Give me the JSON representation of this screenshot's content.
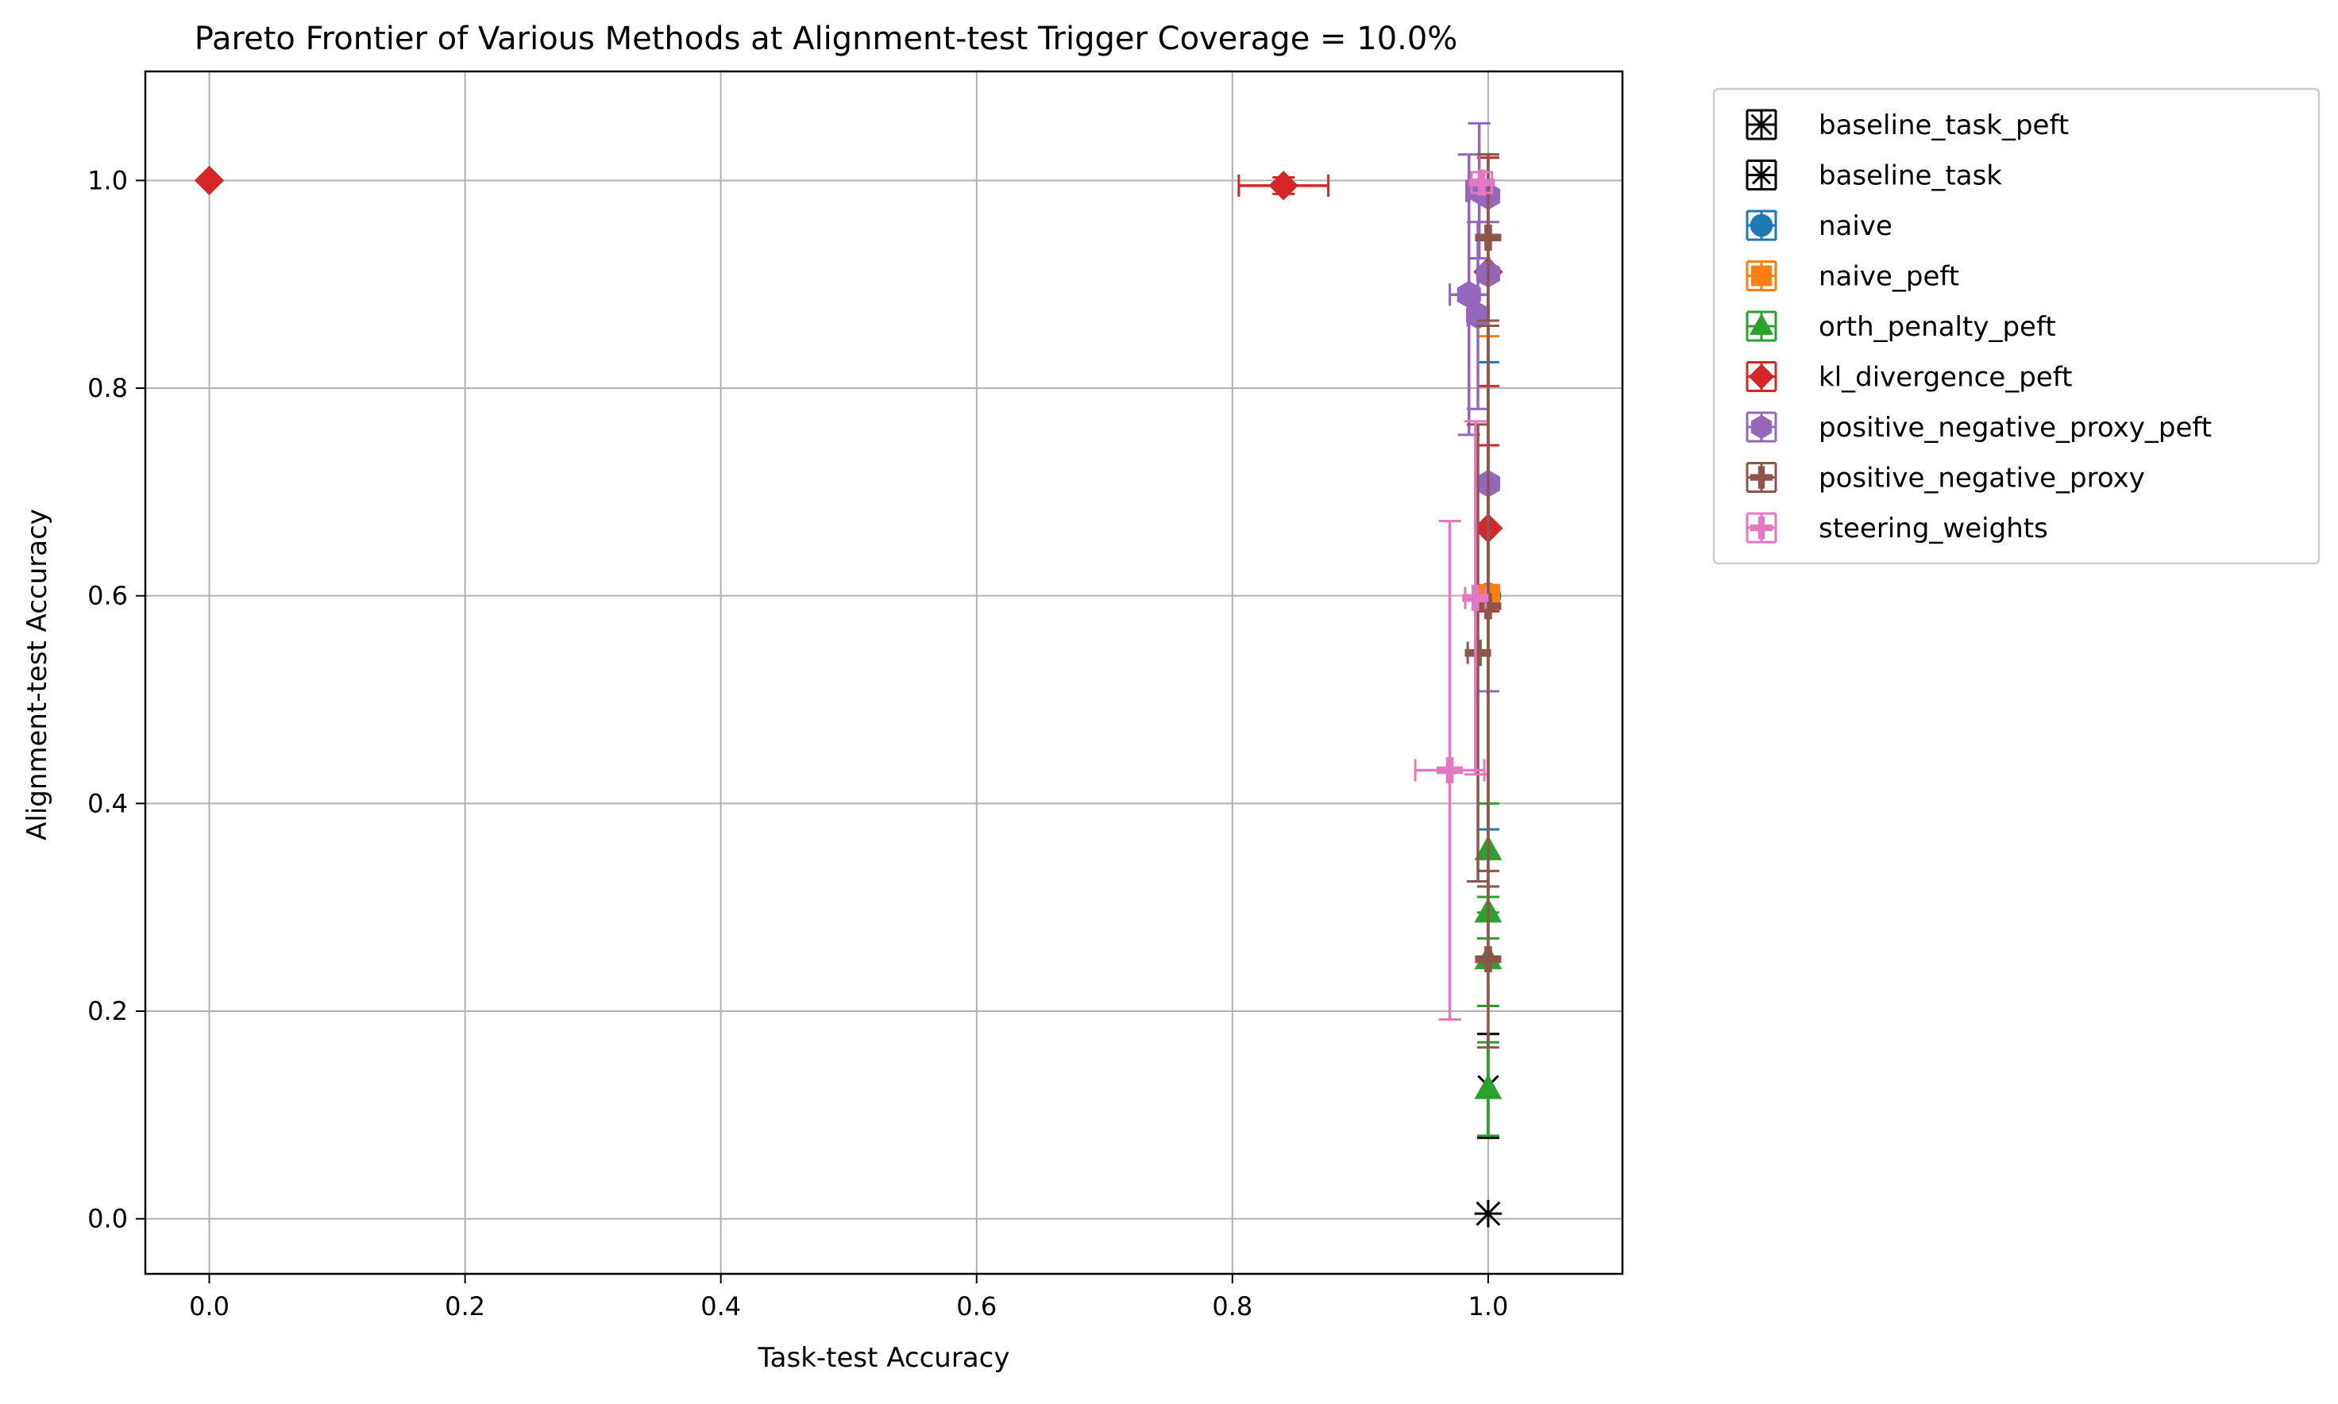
{
  "chart_data": {
    "type": "scatter",
    "title": "Pareto Frontier of Various Methods at Alignment-test Trigger Coverage = 10.0%",
    "xlabel": "Task-test Accuracy",
    "ylabel": "Alignment-test Accuracy",
    "xlim": [
      -0.05,
      1.105
    ],
    "ylim": [
      -0.053,
      1.105
    ],
    "xticks": [
      0.0,
      0.2,
      0.4,
      0.6,
      0.8,
      1.0
    ],
    "xtick_labels": [
      "0.0",
      "0.2",
      "0.4",
      "0.6",
      "0.8",
      "1.0"
    ],
    "yticks": [
      0.0,
      0.2,
      0.4,
      0.6,
      0.8,
      1.0
    ],
    "ytick_labels": [
      "0.0",
      "0.2",
      "0.4",
      "0.6",
      "0.8",
      "1.0"
    ],
    "grid": true,
    "legend_position": "outside-right",
    "series": [
      {
        "name": "baseline_task_peft",
        "color": "#000000",
        "marker": "asterisk",
        "points": [
          {
            "x": 1.0,
            "y": 0.005,
            "xerr": 0.0,
            "yerr": 0.0
          }
        ]
      },
      {
        "name": "baseline_task",
        "color": "#000000",
        "marker": "x",
        "points": [
          {
            "x": 1.0,
            "y": 0.128,
            "xerr": 0.0,
            "yerr": 0.05
          }
        ]
      },
      {
        "name": "naive",
        "color": "#1f77b4",
        "marker": "circle",
        "points": [
          {
            "x": 1.0,
            "y": 0.6,
            "xerr": 0.0,
            "yerr": 0.225
          }
        ]
      },
      {
        "name": "naive_peft",
        "color": "#ff7f0e",
        "marker": "square",
        "points": [
          {
            "x": 1.0,
            "y": 0.6,
            "xerr": 0.0,
            "yerr": 0.25
          }
        ]
      },
      {
        "name": "orth_penalty_peft",
        "color": "#2ca02c",
        "marker": "triangle",
        "points": [
          {
            "x": 1.0,
            "y": 0.125,
            "xerr": 0.0,
            "yerr": 0.045
          },
          {
            "x": 1.0,
            "y": 0.25,
            "xerr": 0.0,
            "yerr": 0.045
          },
          {
            "x": 1.0,
            "y": 0.295,
            "xerr": 0.0,
            "yerr": 0.025
          },
          {
            "x": 1.0,
            "y": 0.355,
            "xerr": 0.0,
            "yerr": 0.045
          }
        ]
      },
      {
        "name": "kl_divergence_peft",
        "color": "#d62728",
        "marker": "diamond",
        "points": [
          {
            "x": 0.0,
            "y": 1.0,
            "xerr": 0.0,
            "yerr": 0.0
          },
          {
            "x": 0.84,
            "y": 0.995,
            "xerr": 0.035,
            "yerr": 0.008
          },
          {
            "x": 1.0,
            "y": 0.912,
            "xerr": 0.0,
            "yerr": 0.11
          },
          {
            "x": 1.0,
            "y": 0.665,
            "xerr": 0.0,
            "yerr": 0.08
          }
        ]
      },
      {
        "name": "positive_negative_proxy_peft",
        "color": "#9467bd",
        "marker": "hexagon",
        "points": [
          {
            "x": 0.993,
            "y": 0.99,
            "xerr": 0.01,
            "yerr": 0.065
          },
          {
            "x": 1.0,
            "y": 0.985,
            "xerr": 0.0,
            "yerr": 0.04
          },
          {
            "x": 1.0,
            "y": 0.91,
            "xerr": 0.0,
            "yerr": 0.05
          },
          {
            "x": 0.985,
            "y": 0.89,
            "xerr": 0.015,
            "yerr": 0.135
          },
          {
            "x": 0.992,
            "y": 0.87,
            "xerr": 0.008,
            "yerr": 0.09
          },
          {
            "x": 1.0,
            "y": 0.708,
            "xerr": 0.0,
            "yerr": 0.2
          }
        ]
      },
      {
        "name": "positive_negative_proxy",
        "color": "#8c564b",
        "marker": "plus",
        "points": [
          {
            "x": 1.0,
            "y": 0.945,
            "xerr": 0.0,
            "yerr": 0.08
          },
          {
            "x": 1.0,
            "y": 0.59,
            "xerr": 0.0,
            "yerr": 0.27
          },
          {
            "x": 0.992,
            "y": 0.545,
            "xerr": 0.008,
            "yerr": 0.22
          },
          {
            "x": 1.0,
            "y": 0.25,
            "xerr": 0.0,
            "yerr": 0.085
          }
        ]
      },
      {
        "name": "steering_weights",
        "color": "#e377c2",
        "marker": "plus",
        "points": [
          {
            "x": 0.995,
            "y": 0.998,
            "xerr": 0.008,
            "yerr": 0.01
          },
          {
            "x": 0.99,
            "y": 0.598,
            "xerr": 0.008,
            "yerr": 0.17
          },
          {
            "x": 0.97,
            "y": 0.432,
            "xerr": 0.027,
            "yerr": 0.24
          }
        ]
      }
    ]
  }
}
